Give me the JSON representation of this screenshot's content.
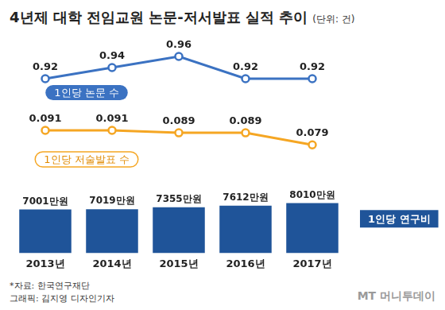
{
  "title": "4년제 대학 전임교원 논문-저서발표 실적 추이",
  "unit": "(단위: 건)",
  "chart_data": [
    {
      "type": "line",
      "categories": [
        "2013년",
        "2014년",
        "2015년",
        "2016년",
        "2017년"
      ],
      "series": [
        {
          "name": "1인당 논문 수",
          "color": "#3b72c2",
          "marker": "circle",
          "values": [
            0.92,
            0.94,
            0.96,
            0.92,
            0.92
          ]
        }
      ],
      "ylim": [
        0.88,
        0.97
      ],
      "data_labels": true,
      "tick_labels": false,
      "grid": false
    },
    {
      "type": "line",
      "categories": [
        "2013년",
        "2014년",
        "2015년",
        "2016년",
        "2017년"
      ],
      "series": [
        {
          "name": "1인당 저술발표 수",
          "color": "#f5a623",
          "marker": "circle",
          "values": [
            0.091,
            0.091,
            0.089,
            0.089,
            0.079
          ]
        }
      ],
      "ylim": [
        0.06,
        0.095
      ],
      "data_labels": true,
      "tick_labels": false,
      "grid": false
    },
    {
      "type": "bar",
      "categories": [
        "2013년",
        "2014년",
        "2015년",
        "2016년",
        "2017년"
      ],
      "series": [
        {
          "name": "1인당 연구비",
          "color": "#1f5499",
          "values": [
            7001,
            7019,
            7355,
            7612,
            8010
          ],
          "value_labels": [
            "7001만원",
            "7019만원",
            "7355만원",
            "7612만원",
            "8010만원"
          ]
        }
      ],
      "ylim": [
        0,
        10000
      ],
      "data_labels": true,
      "tick_labels": "x",
      "grid": false
    }
  ],
  "source": "*자료: 한국연구재단",
  "credit": "그래픽: 김지영 디자인기자",
  "brand": "MT 머니투데이"
}
